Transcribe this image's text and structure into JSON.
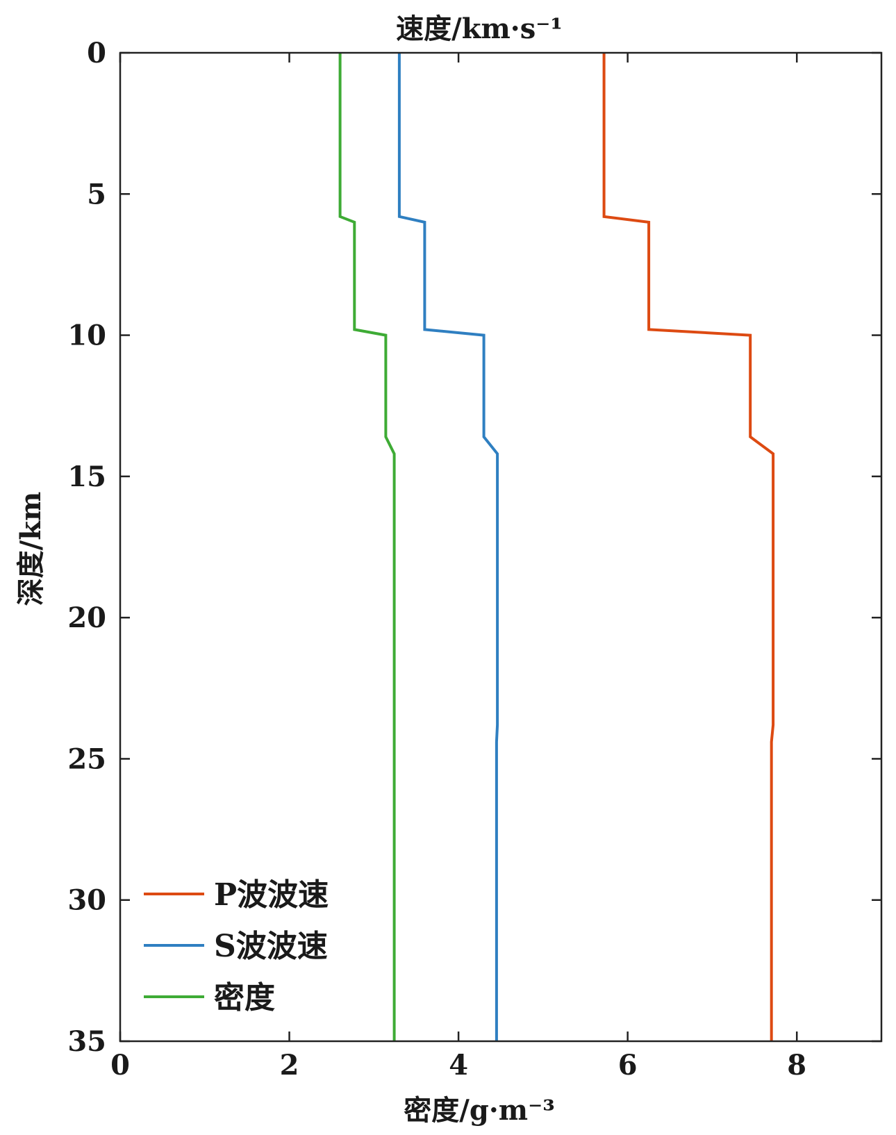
{
  "chart_data": {
    "type": "line",
    "title": "",
    "top_xlabel": "速度/km·s⁻¹",
    "xlabel": "密度/g·m⁻³",
    "ylabel": "深度/km",
    "xlim": [
      0,
      9
    ],
    "ylim": [
      0,
      35
    ],
    "y_reversed": true,
    "xticks": [
      0,
      2,
      4,
      6,
      8
    ],
    "yticks": [
      0,
      5,
      10,
      15,
      20,
      25,
      30,
      35
    ],
    "grid": false,
    "legend_position": "bottom-left",
    "series": [
      {
        "name": "P波波速",
        "color": "#dd4a12",
        "points": [
          [
            5.72,
            0
          ],
          [
            5.72,
            5.8
          ],
          [
            6.25,
            6.0
          ],
          [
            6.25,
            9.8
          ],
          [
            7.45,
            10.0
          ],
          [
            7.45,
            13.6
          ],
          [
            7.72,
            14.2
          ],
          [
            7.72,
            23.8
          ],
          [
            7.7,
            24.4
          ],
          [
            7.7,
            35
          ]
        ]
      },
      {
        "name": "S波波速",
        "color": "#2f7fc1",
        "points": [
          [
            3.3,
            0
          ],
          [
            3.3,
            5.8
          ],
          [
            3.6,
            6.0
          ],
          [
            3.6,
            9.8
          ],
          [
            4.3,
            10.0
          ],
          [
            4.3,
            13.6
          ],
          [
            4.46,
            14.2
          ],
          [
            4.46,
            23.8
          ],
          [
            4.45,
            24.4
          ],
          [
            4.45,
            35
          ]
        ]
      },
      {
        "name": "密度",
        "color": "#3eab35",
        "points": [
          [
            2.6,
            0
          ],
          [
            2.6,
            5.8
          ],
          [
            2.77,
            6.0
          ],
          [
            2.77,
            9.8
          ],
          [
            3.14,
            10.0
          ],
          [
            3.14,
            13.6
          ],
          [
            3.24,
            14.2
          ],
          [
            3.24,
            35
          ]
        ]
      }
    ]
  }
}
